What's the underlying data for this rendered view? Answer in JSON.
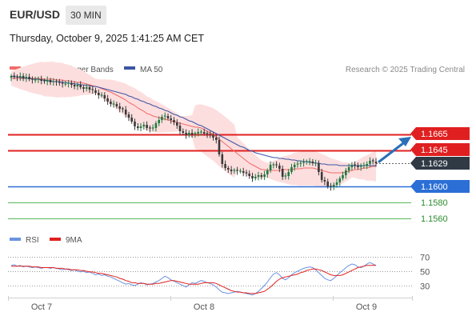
{
  "header": {
    "symbol": "EUR/USD",
    "timeframe": "30 MIN",
    "timestamp": "Thursday, October 9, 2025 1:41:25 AM CET"
  },
  "legend": {
    "ma20_label": "MA 20 + Bollinger Bands",
    "ma50_label": "MA 50",
    "credit": "Research © 2025 Trading Central",
    "rsi_label": "RSI",
    "rsi_ma_label": "9MA"
  },
  "colors": {
    "up": "#1c7a3f",
    "down": "#3a3a3a",
    "ma20": "#f26b6b",
    "band_fill": "#fddede",
    "ma50": "#3c55a5",
    "resistance": "#e02020",
    "pivot": "#2b6fd6",
    "support": "#58b858",
    "support_text": "#2e8b2e",
    "rsi": "#6b92e0",
    "rsi_ma": "#e02020",
    "arrow": "#2b6fb8"
  },
  "chart_data": [
    {
      "type": "candlestick",
      "y_range": [
        1.155,
        1.175
      ],
      "x_axis_labels": [
        "Oct 7",
        "Oct 8",
        "Oct 9"
      ],
      "levels": [
        {
          "value": 1.1665,
          "label": "1.1665",
          "kind": "resistance"
        },
        {
          "value": 1.1645,
          "label": "1.1645",
          "kind": "resistance"
        },
        {
          "value": 1.1629,
          "label": "1.1629",
          "kind": "last"
        },
        {
          "value": 1.16,
          "label": "1.1600",
          "kind": "pivot"
        },
        {
          "value": 1.158,
          "label": "1.1580",
          "kind": "support"
        },
        {
          "value": 1.156,
          "label": "1.1560",
          "kind": "support"
        }
      ],
      "close": [
        1.1738,
        1.1737,
        1.1736,
        1.1738,
        1.1735,
        1.1737,
        1.1734,
        1.1733,
        1.1733,
        1.1734,
        1.1732,
        1.1731,
        1.1733,
        1.173,
        1.1731,
        1.173,
        1.1729,
        1.1728,
        1.1728,
        1.1729,
        1.1727,
        1.1725,
        1.1727,
        1.1724,
        1.1722,
        1.1724,
        1.1721,
        1.172,
        1.1717,
        1.1714,
        1.1714,
        1.171,
        1.1706,
        1.1703,
        1.1703,
        1.17,
        1.1697,
        1.1696,
        1.169,
        1.1686,
        1.1681,
        1.1675,
        1.1673,
        1.1675,
        1.1677,
        1.1673,
        1.1672,
        1.1673,
        1.1679,
        1.1683,
        1.1687,
        1.1688,
        1.1685,
        1.1683,
        1.168,
        1.1676,
        1.1669,
        1.1667,
        1.1664,
        1.1667,
        1.1665,
        1.1666,
        1.1668,
        1.1668,
        1.1666,
        1.1665,
        1.1664,
        1.1661,
        1.1658,
        1.164,
        1.1628,
        1.1623,
        1.1621,
        1.1619,
        1.162,
        1.1619,
        1.1619,
        1.1617,
        1.1616,
        1.1613,
        1.161,
        1.1612,
        1.1614,
        1.1612,
        1.1615,
        1.162,
        1.1627,
        1.1627,
        1.1626,
        1.1622,
        1.1612,
        1.1613,
        1.1618,
        1.1624,
        1.1627,
        1.1628,
        1.1629,
        1.163,
        1.1631,
        1.1631,
        1.1629,
        1.1629,
        1.1618,
        1.1608,
        1.1606,
        1.16,
        1.1599,
        1.1602,
        1.1605,
        1.161,
        1.1614,
        1.162,
        1.1624,
        1.1627,
        1.1626,
        1.1624,
        1.1625,
        1.1626,
        1.1628,
        1.1632,
        1.1631,
        1.1629
      ],
      "ma20": [
        1.1735,
        1.1735,
        1.1735,
        1.1735,
        1.1735,
        1.1735,
        1.1735,
        1.1735,
        1.1735,
        1.1735,
        1.1735,
        1.1734,
        1.1734,
        1.1734,
        1.1734,
        1.1733,
        1.1733,
        1.1733,
        1.1732,
        1.1732,
        1.1731,
        1.1731,
        1.173,
        1.173,
        1.1729,
        1.1728,
        1.1727,
        1.1726,
        1.1725,
        1.1724,
        1.1722,
        1.1721,
        1.1719,
        1.1718,
        1.1716,
        1.1714,
        1.1712,
        1.171,
        1.1708,
        1.1705,
        1.1703,
        1.1701,
        1.1698,
        1.1696,
        1.1694,
        1.1691,
        1.169,
        1.1688,
        1.1687,
        1.1686,
        1.1685,
        1.1684,
        1.1683,
        1.1682,
        1.1681,
        1.168,
        1.1679,
        1.1678,
        1.1677,
        1.1676,
        1.1675,
        1.1674,
        1.1674,
        1.1673,
        1.1671,
        1.1669,
        1.1667,
        1.1665,
        1.1662,
        1.1659,
        1.1656,
        1.1653,
        1.165,
        1.1647,
        1.1644,
        1.1641,
        1.1638,
        1.1635,
        1.1632,
        1.1629,
        1.1627,
        1.1625,
        1.1623,
        1.1621,
        1.1621,
        1.162,
        1.162,
        1.162,
        1.162,
        1.162,
        1.1621,
        1.1621,
        1.1621,
        1.1621,
        1.1622,
        1.1622,
        1.1622,
        1.1623,
        1.1623,
        1.1623,
        1.1623,
        1.1622,
        1.1621,
        1.162,
        1.1619,
        1.1618,
        1.1617,
        1.1617,
        1.1617,
        1.1617,
        1.1617,
        1.1618,
        1.1619,
        1.162,
        1.1621,
        1.1621,
        1.1622,
        1.1623,
        1.1623,
        1.1624,
        1.1625,
        1.1625
      ],
      "ma50": [
        1.1738,
        1.1737,
        1.1737,
        1.1736,
        1.1736,
        1.1735,
        1.1735,
        1.1734,
        1.1734,
        1.1734,
        1.1733,
        1.1733,
        1.1732,
        1.1732,
        1.1731,
        1.1731,
        1.1731,
        1.173,
        1.173,
        1.1729,
        1.1729,
        1.1728,
        1.1728,
        1.1727,
        1.1727,
        1.1726,
        1.1726,
        1.1725,
        1.1725,
        1.1724,
        1.1723,
        1.1722,
        1.1721,
        1.172,
        1.1719,
        1.1718,
        1.1717,
        1.1716,
        1.1715,
        1.1713,
        1.1712,
        1.171,
        1.1709,
        1.1707,
        1.1706,
        1.1704,
        1.1703,
        1.1701,
        1.17,
        1.1698,
        1.1697,
        1.1695,
        1.1694,
        1.1692,
        1.169,
        1.1689,
        1.1687,
        1.1686,
        1.1684,
        1.1682,
        1.1681,
        1.1679,
        1.1677,
        1.1676,
        1.1674,
        1.1672,
        1.167,
        1.1668,
        1.1666,
        1.1664,
        1.1662,
        1.166,
        1.1658,
        1.1656,
        1.1654,
        1.1652,
        1.165,
        1.1649,
        1.1647,
        1.1645,
        1.1644,
        1.1642,
        1.1641,
        1.164,
        1.1639,
        1.1638,
        1.1637,
        1.1636,
        1.1636,
        1.1635,
        1.1635,
        1.1634,
        1.1634,
        1.1633,
        1.1633,
        1.1632,
        1.1632,
        1.1631,
        1.1631,
        1.163,
        1.163,
        1.1629,
        1.1629,
        1.1628,
        1.1628,
        1.1627,
        1.1627,
        1.1627,
        1.1627,
        1.1626,
        1.1626,
        1.1626,
        1.1626,
        1.1626,
        1.1626,
        1.1626,
        1.1626,
        1.1626,
        1.1626,
        1.1626,
        1.1626,
        1.1626
      ]
    },
    {
      "type": "line",
      "name": "RSI",
      "y_ticks": [
        70,
        50,
        30
      ],
      "rsi": [
        58,
        59,
        57,
        58,
        56,
        57,
        56,
        55,
        56,
        55,
        54,
        55,
        55,
        54,
        55,
        54,
        53,
        52,
        53,
        52,
        51,
        52,
        50,
        49,
        50,
        48,
        49,
        47,
        45,
        46,
        44,
        45,
        43,
        42,
        40,
        38,
        36,
        34,
        32,
        33,
        31,
        30,
        32,
        34,
        33,
        31,
        32,
        33,
        35,
        37,
        40,
        43,
        41,
        38,
        36,
        34,
        32,
        30,
        28,
        31,
        34,
        33,
        35,
        37,
        36,
        34,
        33,
        31,
        28,
        24,
        21,
        20,
        19,
        20,
        21,
        22,
        21,
        20,
        19,
        18,
        17,
        19,
        22,
        26,
        30,
        35,
        41,
        46,
        48,
        45,
        40,
        38,
        41,
        45,
        48,
        50,
        52,
        54,
        55,
        56,
        55,
        52,
        48,
        44,
        40,
        38,
        37,
        40,
        44,
        48,
        51,
        55,
        58,
        60,
        59,
        56,
        55,
        57,
        60,
        62,
        60,
        58
      ],
      "rsi_ma": [
        57,
        57,
        57,
        57,
        57,
        57,
        57,
        56,
        56,
        56,
        55,
        55,
        55,
        55,
        55,
        54,
        54,
        54,
        53,
        53,
        52,
        52,
        52,
        51,
        51,
        50,
        49,
        49,
        48,
        47,
        47,
        46,
        45,
        44,
        43,
        42,
        40,
        39,
        37,
        36,
        34,
        34,
        33,
        33,
        33,
        32,
        32,
        32,
        33,
        33,
        34,
        35,
        36,
        37,
        37,
        36,
        35,
        34,
        33,
        32,
        32,
        32,
        32,
        33,
        34,
        34,
        34,
        34,
        33,
        31,
        29,
        27,
        25,
        23,
        22,
        21,
        21,
        20,
        20,
        19,
        19,
        19,
        20,
        21,
        22,
        25,
        28,
        32,
        36,
        39,
        41,
        42,
        43,
        44,
        45,
        46,
        48,
        49,
        51,
        52,
        53,
        53,
        52,
        51,
        49,
        47,
        45,
        44,
        44,
        44,
        45,
        47,
        49,
        51,
        53,
        55,
        56,
        57,
        58,
        58,
        58,
        58
      ]
    }
  ]
}
